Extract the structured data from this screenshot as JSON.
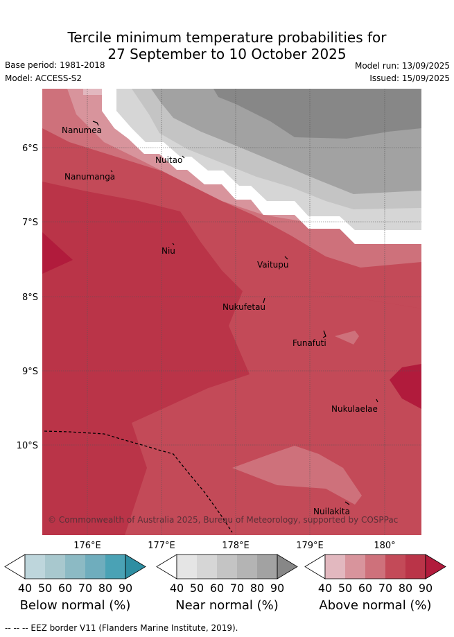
{
  "title_line1": "Tercile minimum temperature probabilities for",
  "title_line2": "27 September to 10 October 2025",
  "base_period": "Base period: 1981-2018",
  "model": "Model: ACCESS-S2",
  "model_run": "Model run: 13/09/2025",
  "issued": "Issued: 15/09/2025",
  "credit": "© Commonwealth of Australia 2025, Bureau of Meteorology, supported by COSPPac",
  "lat_labels": [
    "6°S",
    "7°S",
    "8°S",
    "9°S",
    "10°S"
  ],
  "lon_labels": [
    "176°E",
    "177°E",
    "178°E",
    "179°E",
    "180°"
  ],
  "islands": [
    "Nanumea",
    "Nuitao",
    "Nanumanga",
    "Niu",
    "Vaitupu",
    "Nukufetau",
    "Funafuti",
    "Nukulaelae",
    "Nuilakita"
  ],
  "legends": [
    {
      "label": "Below normal (%)",
      "ticks": [
        "40",
        "50",
        "60",
        "70",
        "80",
        "90"
      ],
      "colors": [
        "#bed6dc",
        "#a8c8ce",
        "#8cbac4",
        "#6fadbd",
        "#4aa2b5",
        "#2e8ea2"
      ]
    },
    {
      "label": "Near normal (%)",
      "ticks": [
        "40",
        "50",
        "60",
        "70",
        "80",
        "90"
      ],
      "colors": [
        "#e5e5e5",
        "#d6d6d6",
        "#c4c4c4",
        "#b4b4b4",
        "#a2a2a2",
        "#878787"
      ]
    },
    {
      "label": "Above normal (%)",
      "ticks": [
        "40",
        "50",
        "60",
        "70",
        "80",
        "90"
      ],
      "colors": [
        "#e2b8bf",
        "#d8949c",
        "#ce717b",
        "#c34a58",
        "#ba3448",
        "#b11b3c"
      ]
    }
  ],
  "footnote": "--  --  -- EEZ border V11 (Flanders Marine Institute, 2019)."
}
